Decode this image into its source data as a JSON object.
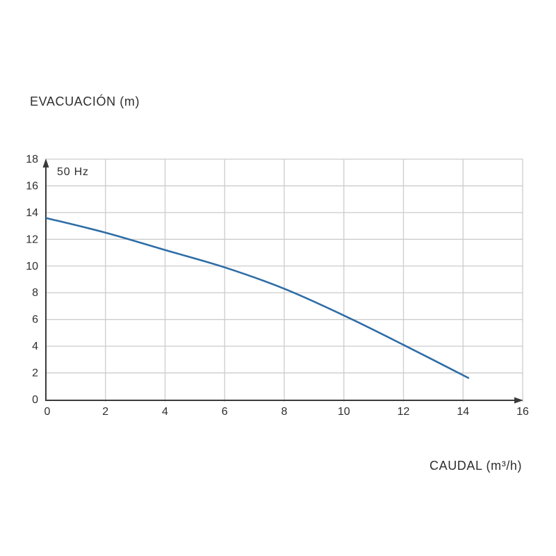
{
  "page": {
    "background": "#ffffff"
  },
  "chart_data": {
    "type": "line",
    "title": "",
    "y_axis_label": "EVACUACIÓN (m)",
    "x_axis_label": "CAUDAL (m³/h)",
    "annotation": "50 Hz",
    "x_ticks": [
      0,
      2,
      4,
      6,
      8,
      10,
      12,
      14,
      16
    ],
    "y_ticks": [
      0,
      2,
      4,
      6,
      8,
      10,
      12,
      14,
      16,
      18
    ],
    "xlim": [
      0,
      16
    ],
    "ylim": [
      0,
      18
    ],
    "grid": true,
    "legend_position": "top-left-inside",
    "series": [
      {
        "name": "50 Hz",
        "points": [
          [
            0,
            13.6
          ],
          [
            2,
            12.5
          ],
          [
            4,
            11.2
          ],
          [
            6,
            9.9
          ],
          [
            8,
            8.3
          ],
          [
            10,
            6.3
          ],
          [
            12,
            4.1
          ],
          [
            14.2,
            1.6
          ]
        ]
      }
    ],
    "colors": {
      "line": "#2d6da6",
      "grid": "#cccccc",
      "axis": "#3a3a3a",
      "text": "#2e2e2e",
      "background": "#ffffff"
    }
  }
}
